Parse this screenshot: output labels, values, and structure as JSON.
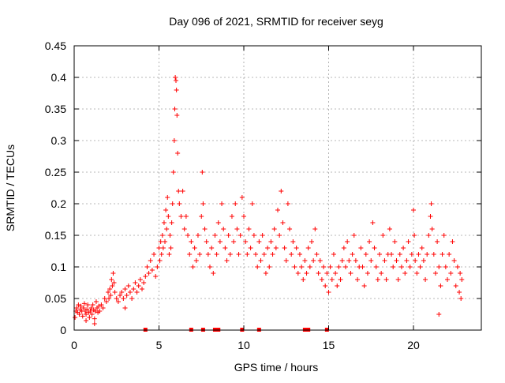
{
  "chart_data": {
    "type": "scatter",
    "title": "Day 096 of 2021, SRMTID for receiver seyg",
    "xlabel": "GPS time / hours",
    "ylabel": "SRMTID / TECUs",
    "xlim": [
      0,
      24
    ],
    "ylim": [
      0,
      0.45
    ],
    "grid": true,
    "marker": "plus",
    "color": "#ff0000",
    "x_ticks": [
      0,
      5,
      10,
      15,
      20
    ],
    "x_tick_labels": [
      "0",
      "5",
      "10",
      "15",
      "20"
    ],
    "y_ticks": [
      0,
      0.05,
      0.1,
      0.15,
      0.2,
      0.25,
      0.3,
      0.35,
      0.4,
      0.45
    ],
    "y_tick_labels": [
      "0",
      "0.05",
      "0.1",
      "0.15",
      "0.2",
      "0.25",
      "0.3",
      "0.35",
      "0.4",
      "0.45"
    ],
    "series": [
      {
        "name": "SRMTID",
        "points": [
          [
            0.05,
            0.02
          ],
          [
            0.1,
            0.03
          ],
          [
            0.15,
            0.035
          ],
          [
            0.2,
            0.028
          ],
          [
            0.25,
            0.04
          ],
          [
            0.3,
            0.025
          ],
          [
            0.35,
            0.032
          ],
          [
            0.4,
            0.038
          ],
          [
            0.45,
            0.03
          ],
          [
            0.5,
            0.022
          ],
          [
            0.55,
            0.035
          ],
          [
            0.6,
            0.042
          ],
          [
            0.65,
            0.03
          ],
          [
            0.7,
            0.025
          ],
          [
            0.75,
            0.033
          ],
          [
            0.8,
            0.04
          ],
          [
            0.85,
            0.028
          ],
          [
            0.9,
            0.02
          ],
          [
            0.95,
            0.03
          ],
          [
            1.0,
            0.035
          ],
          [
            1.05,
            0.025
          ],
          [
            1.1,
            0.04
          ],
          [
            1.15,
            0.032
          ],
          [
            1.2,
            0.018
          ],
          [
            1.25,
            0.03
          ],
          [
            1.3,
            0.045
          ],
          [
            1.35,
            0.035
          ],
          [
            1.4,
            0.028
          ],
          [
            1.45,
            0.038
          ],
          [
            1.5,
            0.03
          ],
          [
            1.6,
            0.04
          ],
          [
            1.7,
            0.035
          ],
          [
            1.8,
            0.05
          ],
          [
            1.9,
            0.045
          ],
          [
            2.0,
            0.06
          ],
          [
            2.05,
            0.05
          ],
          [
            2.1,
            0.065
          ],
          [
            2.15,
            0.055
          ],
          [
            2.2,
            0.08
          ],
          [
            2.25,
            0.07
          ],
          [
            2.3,
            0.09
          ],
          [
            2.35,
            0.075
          ],
          [
            2.4,
            0.06
          ],
          [
            2.5,
            0.05
          ],
          [
            2.6,
            0.045
          ],
          [
            2.7,
            0.055
          ],
          [
            2.8,
            0.06
          ],
          [
            2.9,
            0.05
          ],
          [
            3.0,
            0.065
          ],
          [
            3.1,
            0.055
          ],
          [
            3.2,
            0.07
          ],
          [
            3.3,
            0.06
          ],
          [
            3.4,
            0.05
          ],
          [
            3.5,
            0.065
          ],
          [
            3.6,
            0.075
          ],
          [
            3.7,
            0.06
          ],
          [
            3.8,
            0.07
          ],
          [
            3.9,
            0.08
          ],
          [
            4.0,
            0.065
          ],
          [
            4.1,
            0.075
          ],
          [
            4.2,
            0.085
          ],
          [
            4.3,
            0.1
          ],
          [
            4.4,
            0.09
          ],
          [
            4.5,
            0.11
          ],
          [
            4.6,
            0.095
          ],
          [
            4.7,
            0.12
          ],
          [
            4.8,
            0.085
          ],
          [
            4.9,
            0.1
          ],
          [
            5.0,
            0.13
          ],
          [
            5.05,
            0.11
          ],
          [
            5.1,
            0.14
          ],
          [
            5.15,
            0.12
          ],
          [
            5.2,
            0.15
          ],
          [
            5.25,
            0.13
          ],
          [
            5.3,
            0.17
          ],
          [
            5.35,
            0.14
          ],
          [
            5.4,
            0.19
          ],
          [
            5.45,
            0.16
          ],
          [
            5.5,
            0.21
          ],
          [
            5.55,
            0.18
          ],
          [
            5.6,
            0.12
          ],
          [
            5.65,
            0.15
          ],
          [
            5.7,
            0.13
          ],
          [
            5.75,
            0.17
          ],
          [
            5.8,
            0.2
          ],
          [
            5.85,
            0.25
          ],
          [
            5.9,
            0.3
          ],
          [
            5.93,
            0.35
          ],
          [
            5.96,
            0.4
          ],
          [
            6.0,
            0.395
          ],
          [
            6.03,
            0.38
          ],
          [
            6.06,
            0.34
          ],
          [
            6.1,
            0.28
          ],
          [
            6.15,
            0.22
          ],
          [
            6.2,
            0.2
          ],
          [
            6.3,
            0.18
          ],
          [
            6.4,
            0.22
          ],
          [
            6.5,
            0.16
          ],
          [
            6.6,
            0.18
          ],
          [
            6.7,
            0.15
          ],
          [
            6.8,
            0.12
          ],
          [
            6.9,
            0.14
          ],
          [
            7.0,
            0.1
          ],
          [
            7.1,
            0.13
          ],
          [
            7.2,
            0.11
          ],
          [
            7.3,
            0.15
          ],
          [
            7.4,
            0.12
          ],
          [
            7.5,
            0.18
          ],
          [
            7.55,
            0.25
          ],
          [
            7.6,
            0.2
          ],
          [
            7.7,
            0.16
          ],
          [
            7.8,
            0.14
          ],
          [
            7.9,
            0.12
          ],
          [
            8.0,
            0.1
          ],
          [
            8.1,
            0.13
          ],
          [
            8.2,
            0.09
          ],
          [
            8.3,
            0.15
          ],
          [
            8.4,
            0.12
          ],
          [
            8.5,
            0.17
          ],
          [
            8.6,
            0.14
          ],
          [
            8.7,
            0.2
          ],
          [
            8.8,
            0.16
          ],
          [
            8.9,
            0.13
          ],
          [
            9.0,
            0.11
          ],
          [
            9.1,
            0.15
          ],
          [
            9.2,
            0.12
          ],
          [
            9.3,
            0.18
          ],
          [
            9.4,
            0.14
          ],
          [
            9.5,
            0.2
          ],
          [
            9.6,
            0.16
          ],
          [
            9.7,
            0.12
          ],
          [
            9.8,
            0.15
          ],
          [
            9.9,
            0.21
          ],
          [
            10.0,
            0.18
          ],
          [
            10.1,
            0.14
          ],
          [
            10.2,
            0.12
          ],
          [
            10.3,
            0.16
          ],
          [
            10.4,
            0.13
          ],
          [
            10.5,
            0.2
          ],
          [
            10.6,
            0.15
          ],
          [
            10.7,
            0.12
          ],
          [
            10.8,
            0.1
          ],
          [
            10.9,
            0.14
          ],
          [
            11.0,
            0.11
          ],
          [
            11.1,
            0.15
          ],
          [
            11.2,
            0.12
          ],
          [
            11.3,
            0.09
          ],
          [
            11.4,
            0.13
          ],
          [
            11.5,
            0.1
          ],
          [
            11.6,
            0.14
          ],
          [
            11.7,
            0.12
          ],
          [
            11.8,
            0.16
          ],
          [
            11.9,
            0.13
          ],
          [
            12.0,
            0.19
          ],
          [
            12.1,
            0.15
          ],
          [
            12.2,
            0.22
          ],
          [
            12.3,
            0.17
          ],
          [
            12.4,
            0.13
          ],
          [
            12.5,
            0.11
          ],
          [
            12.6,
            0.2
          ],
          [
            12.7,
            0.16
          ],
          [
            12.8,
            0.12
          ],
          [
            12.9,
            0.14
          ],
          [
            13.0,
            0.1
          ],
          [
            13.1,
            0.13
          ],
          [
            13.2,
            0.09
          ],
          [
            13.3,
            0.12
          ],
          [
            13.4,
            0.1
          ],
          [
            13.5,
            0.08
          ],
          [
            13.6,
            0.11
          ],
          [
            13.7,
            0.09
          ],
          [
            13.8,
            0.13
          ],
          [
            13.9,
            0.1
          ],
          [
            14.0,
            0.14
          ],
          [
            14.1,
            0.11
          ],
          [
            14.2,
            0.16
          ],
          [
            14.3,
            0.12
          ],
          [
            14.4,
            0.09
          ],
          [
            14.5,
            0.11
          ],
          [
            14.6,
            0.08
          ],
          [
            14.7,
            0.1
          ],
          [
            14.8,
            0.07
          ],
          [
            14.9,
            0.09
          ],
          [
            15.0,
            0.06
          ],
          [
            15.1,
            0.1
          ],
          [
            15.2,
            0.08
          ],
          [
            15.3,
            0.12
          ],
          [
            15.4,
            0.09
          ],
          [
            15.5,
            0.07
          ],
          [
            15.6,
            0.1
          ],
          [
            15.7,
            0.08
          ],
          [
            15.8,
            0.11
          ],
          [
            15.9,
            0.13
          ],
          [
            16.0,
            0.1
          ],
          [
            16.1,
            0.14
          ],
          [
            16.2,
            0.11
          ],
          [
            16.3,
            0.09
          ],
          [
            16.4,
            0.12
          ],
          [
            16.5,
            0.15
          ],
          [
            16.6,
            0.11
          ],
          [
            16.7,
            0.08
          ],
          [
            16.8,
            0.1
          ],
          [
            16.9,
            0.13
          ],
          [
            17.0,
            0.1
          ],
          [
            17.1,
            0.07
          ],
          [
            17.2,
            0.12
          ],
          [
            17.3,
            0.09
          ],
          [
            17.4,
            0.14
          ],
          [
            17.5,
            0.11
          ],
          [
            17.6,
            0.17
          ],
          [
            17.7,
            0.13
          ],
          [
            17.8,
            0.1
          ],
          [
            17.9,
            0.08
          ],
          [
            18.0,
            0.12
          ],
          [
            18.1,
            0.09
          ],
          [
            18.2,
            0.15
          ],
          [
            18.3,
            0.11
          ],
          [
            18.4,
            0.08
          ],
          [
            18.5,
            0.12
          ],
          [
            18.6,
            0.16
          ],
          [
            18.7,
            0.12
          ],
          [
            18.8,
            0.1
          ],
          [
            18.9,
            0.14
          ],
          [
            19.0,
            0.11
          ],
          [
            19.1,
            0.08
          ],
          [
            19.2,
            0.12
          ],
          [
            19.3,
            0.1
          ],
          [
            19.4,
            0.13
          ],
          [
            19.5,
            0.09
          ],
          [
            19.6,
            0.11
          ],
          [
            19.7,
            0.14
          ],
          [
            19.8,
            0.1
          ],
          [
            19.9,
            0.12
          ],
          [
            20.0,
            0.19
          ],
          [
            20.05,
            0.15
          ],
          [
            20.1,
            0.11
          ],
          [
            20.2,
            0.09
          ],
          [
            20.3,
            0.12
          ],
          [
            20.4,
            0.1
          ],
          [
            20.5,
            0.13
          ],
          [
            20.6,
            0.11
          ],
          [
            20.7,
            0.08
          ],
          [
            20.8,
            0.12
          ],
          [
            20.9,
            0.15
          ],
          [
            21.0,
            0.18
          ],
          [
            21.05,
            0.2
          ],
          [
            21.1,
            0.16
          ],
          [
            21.2,
            0.12
          ],
          [
            21.3,
            0.09
          ],
          [
            21.4,
            0.14
          ],
          [
            21.5,
            0.1
          ],
          [
            21.6,
            0.07
          ],
          [
            21.7,
            0.12
          ],
          [
            21.8,
            0.15
          ],
          [
            21.9,
            0.1
          ],
          [
            22.0,
            0.08
          ],
          [
            22.1,
            0.12
          ],
          [
            22.2,
            0.09
          ],
          [
            22.3,
            0.14
          ],
          [
            22.4,
            0.11
          ],
          [
            22.5,
            0.07
          ],
          [
            22.6,
            0.1
          ],
          [
            22.7,
            0.06
          ],
          [
            22.75,
            0.09
          ],
          [
            22.8,
            0.05
          ],
          [
            22.85,
            0.08
          ],
          [
            21.5,
            0.025
          ],
          [
            1.2,
            0.01
          ],
          [
            0.7,
            0.015
          ],
          [
            3.0,
            0.035
          ]
        ]
      }
    ],
    "baseline_marks_x": [
      4.2,
      6.9,
      7.6,
      8.3,
      8.5,
      9.9,
      10.9,
      13.6,
      13.8,
      14.9
    ]
  }
}
